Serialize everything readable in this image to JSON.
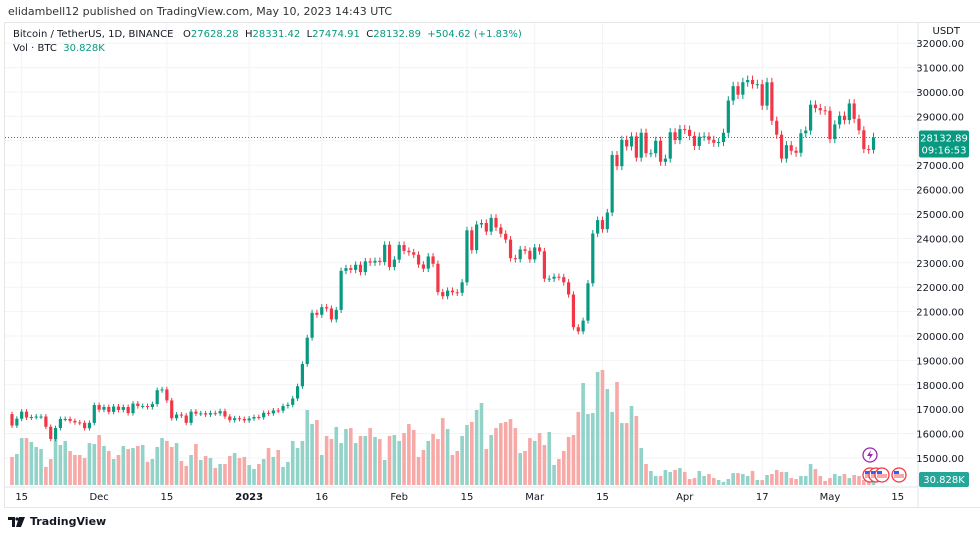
{
  "header": {
    "published": "elidambell12 published on TradingView.com, May 10, 2023 14:43 UTC"
  },
  "legend": {
    "symbol": "Bitcoin / TetherUS, 1D, BINANCE",
    "o_label": "O",
    "o": "27628.28",
    "h_label": "H",
    "h": "28331.42",
    "l_label": "L",
    "l": "27474.91",
    "c_label": "C",
    "c": "28132.89",
    "change": "+504.62 (+1.83%)",
    "vol_label": "Vol · BTC",
    "vol": "30.828K"
  },
  "price_axis": {
    "currency": "USDT",
    "last_price": "28132.89",
    "countdown": "09:16:53",
    "last_volume": "30.828K"
  },
  "footer": {
    "logo": "TradingView"
  },
  "colors": {
    "up": "#089981",
    "down": "#f23645",
    "up_volume": "#92d2c8",
    "down_volume": "#f7a9a7",
    "event_purple": "#9c27b0",
    "event_red": "#f23645"
  },
  "icons": [
    "lightning-event-icon",
    "us-flag-event-icon",
    "us-flag-event-icon"
  ],
  "chart_data": {
    "type": "candlestick",
    "interval": "1D",
    "start": "2022-11-13",
    "first_open": 16800,
    "last_candle": {
      "open": 27628.28,
      "high": 28331.42,
      "low": 27474.91,
      "close": 28132.89
    },
    "ylim": [
      15000,
      32000
    ],
    "grid": true,
    "y_ticks": [
      15000,
      16000,
      17000,
      18000,
      19000,
      20000,
      21000,
      22000,
      23000,
      24000,
      25000,
      26000,
      27000,
      28000,
      29000,
      30000,
      31000,
      32000
    ],
    "y_tick_labels": [
      "15000.00",
      "16000.00",
      "17000.00",
      "18000.00",
      "19000.00",
      "20000.00",
      "21000.00",
      "22000.00",
      "23000.00",
      "24000.00",
      "25000.00",
      "26000.00",
      "27000.00",
      "28000.00",
      "29000.00",
      "30000.00",
      "31000.00",
      "32000.00"
    ],
    "x_ticks": [
      {
        "date": "2022-11-15",
        "label": "15"
      },
      {
        "date": "2022-12-01",
        "label": "Dec"
      },
      {
        "date": "2022-12-15",
        "label": "15"
      },
      {
        "date": "2023-01-01",
        "label": "2023",
        "bold": true
      },
      {
        "date": "2023-01-16",
        "label": "16"
      },
      {
        "date": "2023-02-01",
        "label": "Feb"
      },
      {
        "date": "2023-02-15",
        "label": "15"
      },
      {
        "date": "2023-03-01",
        "label": "Mar"
      },
      {
        "date": "2023-03-15",
        "label": "15"
      },
      {
        "date": "2023-04-01",
        "label": "Apr"
      },
      {
        "date": "2023-04-17",
        "label": "17"
      },
      {
        "date": "2023-05-01",
        "label": "May"
      },
      {
        "date": "2023-05-15",
        "label": "15"
      }
    ],
    "close": [
      16330,
      16610,
      16900,
      16660,
      16680,
      16700,
      16700,
      16280,
      15780,
      16230,
      16600,
      16600,
      16520,
      16460,
      16440,
      16220,
      16440,
      17170,
      16980,
      17090,
      16890,
      17110,
      16970,
      17090,
      16840,
      17230,
      17130,
      17130,
      17090,
      17210,
      17780,
      17810,
      17360,
      16630,
      16780,
      16740,
      16440,
      16900,
      16820,
      16830,
      16780,
      16840,
      16830,
      16920,
      16700,
      16550,
      16630,
      16600,
      16540,
      16620,
      16680,
      16670,
      16850,
      16830,
      16950,
      16940,
      17130,
      17180,
      17440,
      17940,
      18850,
      19930,
      20950,
      20870,
      21180,
      21130,
      20680,
      21070,
      22670,
      22780,
      22710,
      22920,
      22620,
      23060,
      23010,
      23080,
      23030,
      23740,
      22830,
      23130,
      23730,
      23490,
      23430,
      23330,
      22930,
      22760,
      23260,
      22960,
      21800,
      21630,
      21860,
      21790,
      21770,
      22200,
      24330,
      23520,
      24570,
      24630,
      24280,
      24840,
      24450,
      24190,
      23950,
      23190,
      23150,
      23550,
      23490,
      23140,
      23630,
      23470,
      22350,
      22350,
      22430,
      22410,
      22200,
      21700,
      20360,
      20190,
      20630,
      22160,
      24200,
      24750,
      24380,
      25060,
      27420,
      26960,
      28040,
      27770,
      28180,
      27310,
      28330,
      27490,
      27490,
      28000,
      27140,
      27270,
      28350,
      28030,
      28480,
      28450,
      28200,
      27790,
      28170,
      28180,
      28040,
      27920,
      27950,
      28330,
      29650,
      30240,
      29890,
      30400,
      30490,
      30320,
      30320,
      29440,
      30400,
      28820,
      28250,
      27270,
      27820,
      27590,
      27510,
      28310,
      28420,
      29480,
      29340,
      29250,
      29230,
      28070,
      28670,
      29030,
      28850,
      29530,
      28900,
      28430,
      27660,
      27630,
      28132.89
    ],
    "volume_k": [
      174,
      192,
      291,
      291,
      267,
      236,
      223,
      112,
      161,
      291,
      248,
      273,
      211,
      186,
      186,
      167,
      260,
      254,
      310,
      242,
      211,
      161,
      186,
      242,
      223,
      229,
      242,
      248,
      143,
      161,
      236,
      291,
      273,
      236,
      260,
      149,
      118,
      186,
      254,
      155,
      180,
      167,
      105,
      130,
      130,
      180,
      198,
      167,
      174,
      124,
      99,
      130,
      161,
      229,
      174,
      217,
      112,
      143,
      273,
      229,
      273,
      465,
      378,
      403,
      186,
      304,
      285,
      360,
      260,
      347,
      353,
      260,
      304,
      304,
      353,
      298,
      285,
      155,
      304,
      310,
      273,
      322,
      378,
      341,
      174,
      217,
      273,
      316,
      285,
      415,
      347,
      186,
      211,
      304,
      372,
      391,
      465,
      508,
      223,
      310,
      353,
      384,
      391,
      409,
      353,
      198,
      211,
      291,
      273,
      322,
      248,
      329,
      124,
      161,
      211,
      298,
      310,
      453,
      632,
      440,
      446,
      701,
      713,
      595,
      453,
      639,
      384,
      384,
      490,
      428,
      229,
      130,
      87,
      56,
      56,
      93,
      81,
      93,
      105,
      81,
      37,
      43,
      87,
      56,
      68,
      43,
      31,
      19,
      37,
      74,
      74,
      68,
      56,
      87,
      31,
      31,
      62,
      68,
      93,
      81,
      81,
      43,
      37,
      56,
      56,
      130,
      99,
      56,
      25,
      43,
      68,
      56,
      68,
      43,
      62,
      56,
      31,
      74,
      30.828
    ]
  }
}
